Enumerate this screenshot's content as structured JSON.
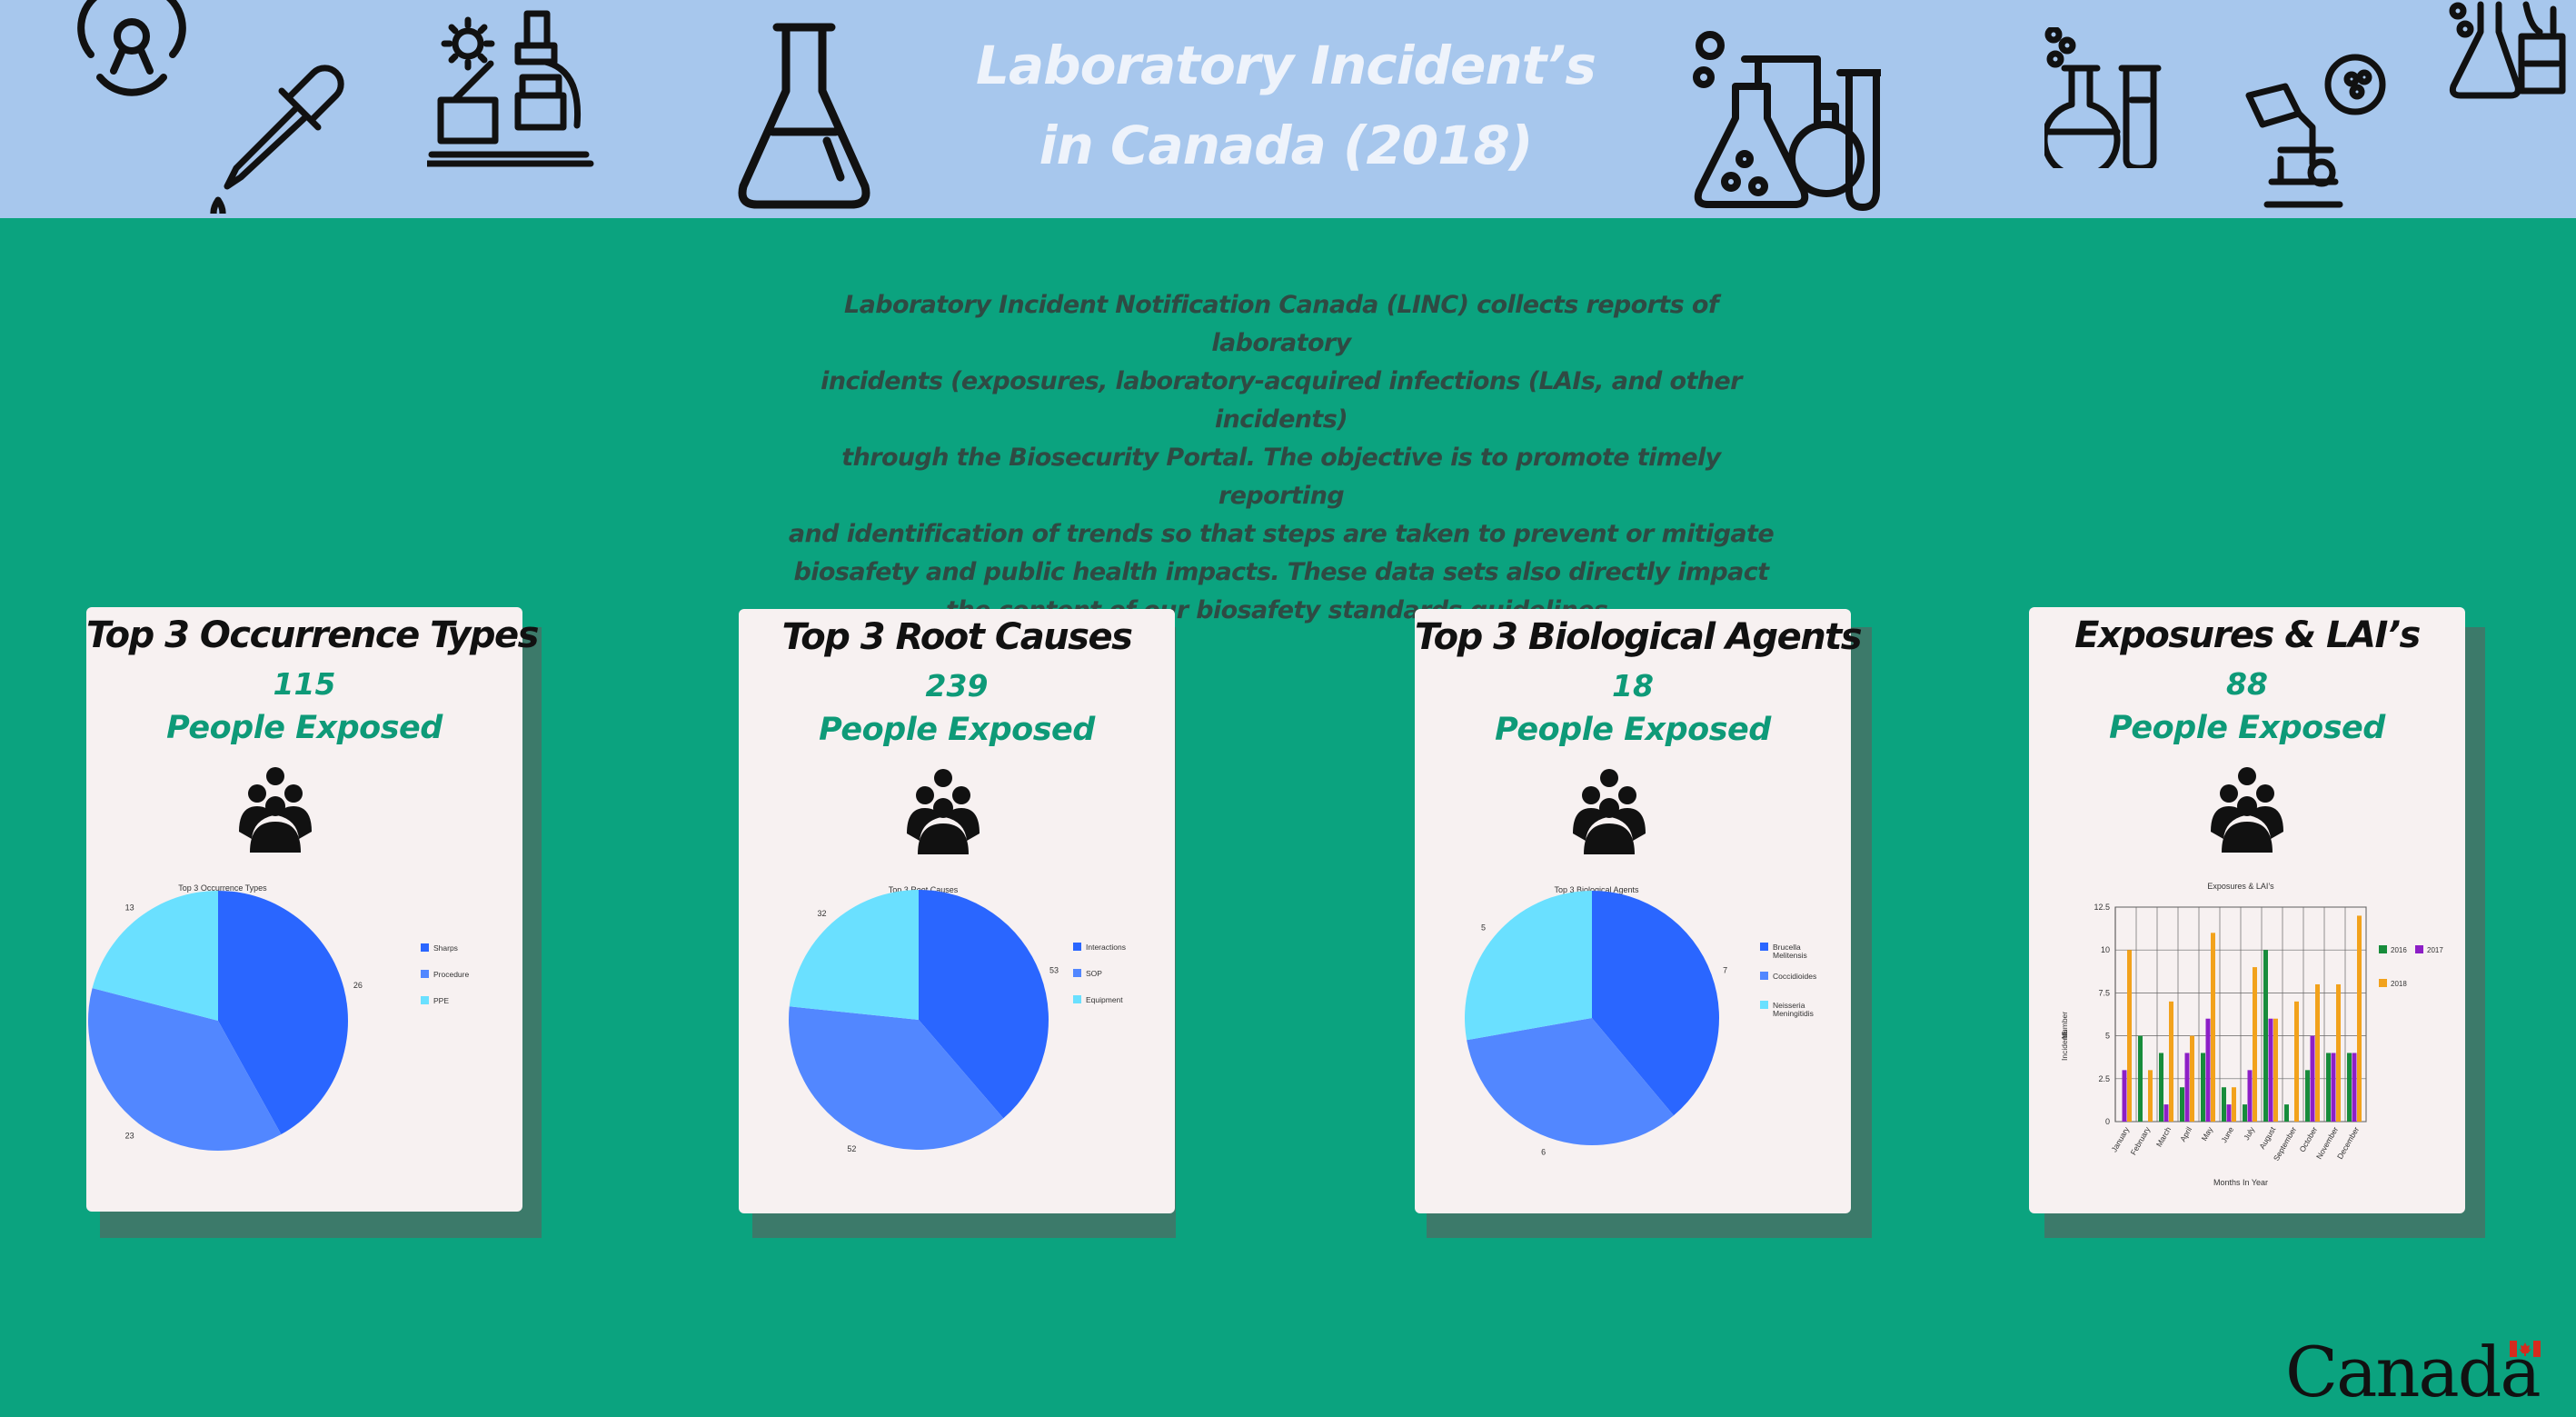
{
  "header": {
    "title_line1": "Laboratory Incident’s",
    "title_line2": "in Canada (2018)",
    "icons": [
      "biohazard-icon",
      "dropper-icon",
      "lab-equipment-icon",
      "erlenmeyer-flask-icon",
      "chemistry-apparatus-icon",
      "flask-tube-icon",
      "microscope-petri-icon",
      "beakers-icon"
    ]
  },
  "intro": {
    "lines": [
      "Laboratory Incident Notification Canada (LINC) collects reports of laboratory",
      "incidents (exposures, laboratory-acquired infections (LAIs, and other incidents)",
      "through the Biosecurity Portal. The objective is to promote timely reporting",
      "and identification of trends so that steps are taken to prevent or mitigate",
      "biosafety and public health impacts. These data sets also directly impact",
      "the content of our biosafety  standards guidelines."
    ]
  },
  "colors": {
    "background": "#0ba37f",
    "header": "#a7c7ed",
    "accent_text": "#0e9a78",
    "pie": [
      "#2a66ff",
      "#5287ff",
      "#6ae0ff"
    ],
    "bars": [
      "#178c3b",
      "#8d1fc6",
      "#f2a21c"
    ]
  },
  "cards": [
    {
      "title": "Top 3 Occurrence Types",
      "number": "115",
      "subtitle": "People Exposed",
      "icon": "people-group-icon"
    },
    {
      "title": "Top 3 Root Causes",
      "number": "239",
      "subtitle": "People Exposed",
      "icon": "people-group-icon"
    },
    {
      "title": "Top 3 Biological Agents",
      "number": "18",
      "subtitle": "People Exposed",
      "icon": "people-group-icon"
    },
    {
      "title": "Exposures & LAI’s",
      "number": "88",
      "subtitle": "People Exposed",
      "icon": "people-group-icon"
    }
  ],
  "chart_data": [
    {
      "type": "pie",
      "title": "Top 3 Occurrence Types",
      "labels": [
        "Sharps",
        "Procedure",
        "PPE"
      ],
      "legend_lines": [
        [
          "Sharps"
        ],
        [
          "Procedure"
        ],
        [
          "PPE"
        ]
      ],
      "values": [
        26,
        23,
        13
      ],
      "legend": "right"
    },
    {
      "type": "pie",
      "title": "Top 3 Root Causes",
      "labels": [
        "Interactions",
        "SOP",
        "Equipment"
      ],
      "legend_lines": [
        [
          "Interactions"
        ],
        [
          "SOP"
        ],
        [
          "Equipment"
        ]
      ],
      "values": [
        53,
        52,
        32
      ],
      "legend": "right"
    },
    {
      "type": "pie",
      "title": "Top 3 Biological Agents",
      "labels": [
        "Brucella Melitensis",
        "Coccidioides",
        "Neisseria Meningitidis"
      ],
      "legend_lines": [
        [
          "Brucella",
          "Melitensis"
        ],
        [
          "Coccidioides"
        ],
        [
          "Neisseria",
          "Meningitidis"
        ]
      ],
      "values": [
        7,
        6,
        5
      ],
      "legend": "right"
    },
    {
      "type": "bar",
      "title": "Exposures & LAI’s",
      "xlabel": "Months In Year",
      "ylabel": "Number of Incidents",
      "ylabel_lines": [
        "Number",
        "of",
        "Incidents"
      ],
      "ylim": [
        0,
        12.5
      ],
      "yticks": [
        "0",
        "2.5",
        "5",
        "7.5",
        "10",
        "12.5"
      ],
      "grid": true,
      "legend": "right",
      "categories": [
        "January",
        "February",
        "March",
        "April",
        "May",
        "June",
        "July",
        "August",
        "September",
        "October",
        "November",
        "December"
      ],
      "series": [
        {
          "name": "2016",
          "values": [
            0,
            5,
            4,
            2,
            4,
            2,
            1,
            10,
            1,
            3,
            4,
            4
          ]
        },
        {
          "name": "2017",
          "values": [
            3,
            0,
            1,
            4,
            6,
            1,
            3,
            6,
            0,
            5,
            4,
            4
          ]
        },
        {
          "name": "2018",
          "values": [
            10,
            3,
            7,
            5,
            11,
            2,
            9,
            6,
            7,
            8,
            8,
            12
          ]
        }
      ]
    }
  ],
  "footer": {
    "wordmark": "Canada",
    "icon": "canada-flag-icon"
  }
}
